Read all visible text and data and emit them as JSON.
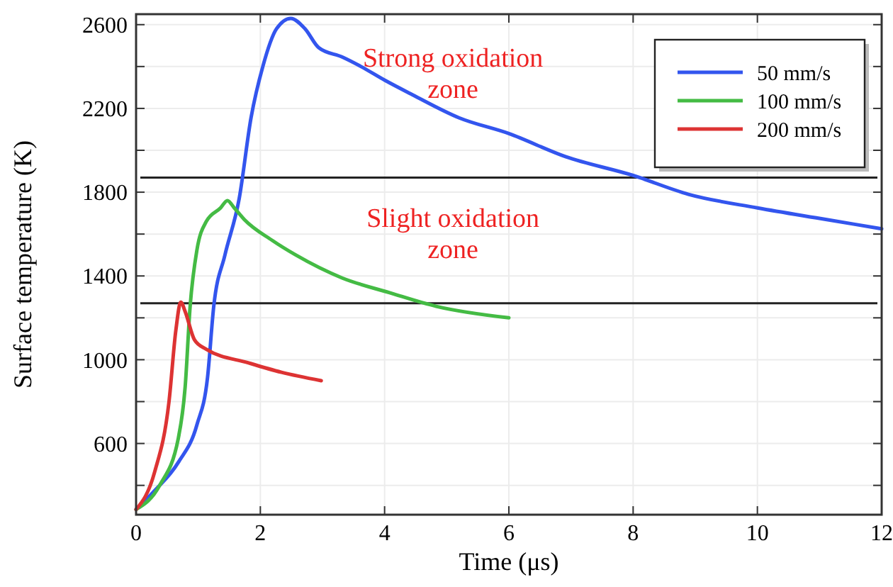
{
  "chart_data": {
    "type": "line",
    "xlabel": "Time (μs)",
    "ylabel": "Surface temperature (K)",
    "xlim": [
      0,
      12
    ],
    "ylim": [
      260,
      2650
    ],
    "xticks": [
      0,
      2,
      4,
      6,
      8,
      10,
      12
    ],
    "yticks": [
      {
        "value": 400,
        "label": null
      },
      600,
      {
        "value": 800,
        "label": null
      },
      1000,
      {
        "value": 1200,
        "label": null
      },
      1400,
      {
        "value": 1600,
        "label": null
      },
      1800,
      {
        "value": 2000,
        "label": null
      },
      2200,
      {
        "value": 2400,
        "label": null
      },
      2600
    ],
    "grid": true,
    "legend": "top right",
    "line_style": "solid",
    "marker": "none",
    "series": [
      {
        "name": "50 mm/s",
        "color": "#3355ee",
        "x": [
          0,
          0.3,
          0.68,
          0.98,
          1.15,
          1.25,
          1.43,
          1.66,
          1.85,
          2.04,
          2.26,
          2.49,
          2.72,
          2.94,
          3.32,
          3.62,
          4.0,
          4.45,
          5.2,
          6,
          6.91,
          8,
          8.89,
          10,
          11.1,
          12
        ],
        "values": [
          285,
          375,
          510,
          690,
          915,
          1255,
          1500,
          1770,
          2155,
          2400,
          2580,
          2630,
          2580,
          2490,
          2445,
          2400,
          2335,
          2265,
          2155,
          2080,
          1970,
          1880,
          1790,
          1725,
          1670,
          1625
        ]
      },
      {
        "name": "100 mm/s",
        "color": "#44bb44",
        "x": [
          0,
          0.38,
          0.68,
          0.79,
          0.87,
          0.98,
          1.13,
          1.36,
          1.47,
          1.58,
          1.74,
          2.19,
          2.57,
          3.32,
          4.08,
          4.83,
          6
        ],
        "values": [
          285,
          400,
          625,
          870,
          1255,
          1525,
          1660,
          1725,
          1760,
          1725,
          1670,
          1570,
          1500,
          1390,
          1320,
          1255,
          1200
        ]
      },
      {
        "name": "200 mm/s",
        "color": "#dd3333",
        "x": [
          0,
          0.3,
          0.53,
          0.64,
          0.72,
          0.79,
          0.94,
          1.13,
          1.81,
          2.34,
          2.98
        ],
        "values": [
          285,
          465,
          800,
          1140,
          1275,
          1230,
          1095,
          1050,
          985,
          940,
          900
        ]
      }
    ],
    "ref_lines": [
      {
        "axis": "y",
        "value": 1870,
        "color": "#222222"
      },
      {
        "axis": "y",
        "value": 1270,
        "color": "#222222"
      }
    ],
    "annotations": [
      "Strong oxidation zone",
      "Slight oxidation zone"
    ]
  }
}
